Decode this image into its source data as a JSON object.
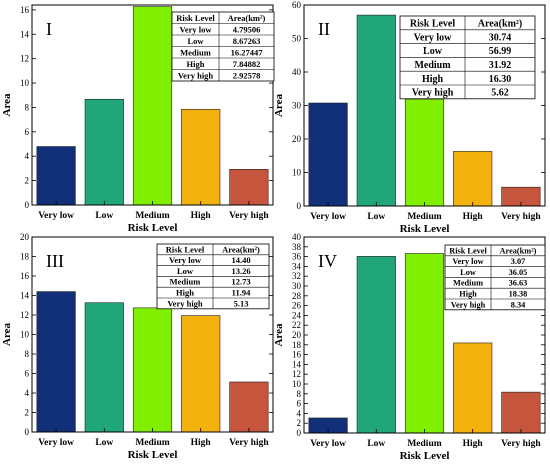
{
  "chart_data": [
    {
      "type": "bar",
      "panel_label": "I",
      "categories": [
        "Very low",
        "Low",
        "Medium",
        "High",
        "Very high"
      ],
      "values": [
        4.79506,
        8.67263,
        16.27447,
        7.84882,
        2.92578
      ],
      "colors": [
        "#12307a",
        "#21a67a",
        "#80f000",
        "#f2b10c",
        "#c5553d"
      ],
      "xlabel": "Risk Level",
      "ylabel": "Area",
      "ylim": [
        0,
        16.4
      ],
      "yticks": [
        0,
        2,
        4,
        6,
        8,
        10,
        12,
        14,
        16
      ],
      "grid": false,
      "legend": "none",
      "table": {
        "headers": [
          "Risk Level",
          "Area(km²)"
        ],
        "rows": [
          [
            "Very low",
            "4.79506"
          ],
          [
            "Low",
            "8.67263"
          ],
          [
            "Medium",
            "16.27447"
          ],
          [
            "High",
            "7.84882"
          ],
          [
            "Very high",
            "2.92578"
          ]
        ]
      }
    },
    {
      "type": "bar",
      "panel_label": "II",
      "categories": [
        "Very low",
        "Low",
        "Medium",
        "High",
        "Very high"
      ],
      "values": [
        30.74,
        56.99,
        31.92,
        16.3,
        5.62
      ],
      "colors": [
        "#12307a",
        "#21a67a",
        "#80f000",
        "#f2b10c",
        "#c5553d"
      ],
      "xlabel": "Risk Level",
      "ylabel": "Area",
      "ylim": [
        0,
        60
      ],
      "yticks": [
        0,
        10,
        20,
        30,
        40,
        50,
        60
      ],
      "grid": false,
      "legend": "none",
      "table": {
        "headers": [
          "Risk Level",
          "Area(km²)"
        ],
        "rows": [
          [
            "Very low",
            "30.74"
          ],
          [
            "Low",
            "56.99"
          ],
          [
            "Medium",
            "31.92"
          ],
          [
            "High",
            "16.30"
          ],
          [
            "Very high",
            "5.62"
          ]
        ]
      }
    },
    {
      "type": "bar",
      "panel_label": "III",
      "categories": [
        "Very low",
        "Low",
        "Medium",
        "High",
        "Very high"
      ],
      "values": [
        14.4,
        13.26,
        12.73,
        11.94,
        5.13
      ],
      "colors": [
        "#12307a",
        "#21a67a",
        "#80f000",
        "#f2b10c",
        "#c5553d"
      ],
      "xlabel": "Risk Level",
      "ylabel": "Area",
      "ylim": [
        0,
        20
      ],
      "yticks": [
        0,
        2,
        4,
        6,
        8,
        10,
        12,
        14,
        16,
        18,
        20
      ],
      "grid": false,
      "legend": "none",
      "table": {
        "headers": [
          "Risk Level",
          "Area(km²)"
        ],
        "rows": [
          [
            "Very low",
            "14.40"
          ],
          [
            "Low",
            "13.26"
          ],
          [
            "Medium",
            "12.73"
          ],
          [
            "High",
            "11.94"
          ],
          [
            "Very high",
            "5.13"
          ]
        ]
      }
    },
    {
      "type": "bar",
      "panel_label": "IV",
      "categories": [
        "Very low",
        "Low",
        "Medium",
        "High",
        "Very high"
      ],
      "values": [
        3.07,
        36.05,
        36.63,
        18.38,
        8.34
      ],
      "colors": [
        "#12307a",
        "#21a67a",
        "#80f000",
        "#f2b10c",
        "#c5553d"
      ],
      "xlabel": "Risk Level",
      "ylabel": "Area",
      "ylim": [
        0,
        40
      ],
      "yticks": [
        0,
        2,
        4,
        6,
        8,
        10,
        12,
        14,
        16,
        18,
        20,
        22,
        24,
        26,
        28,
        30,
        32,
        34,
        36,
        38,
        40
      ],
      "grid": false,
      "legend": "none",
      "table": {
        "headers": [
          "Risk Level",
          "Area(km²)"
        ],
        "rows": [
          [
            "Very low",
            "3.07"
          ],
          [
            "Low",
            "36.05"
          ],
          [
            "Medium",
            "36.63"
          ],
          [
            "High",
            "18.38"
          ],
          [
            "Very high",
            "8.34"
          ]
        ]
      }
    }
  ]
}
